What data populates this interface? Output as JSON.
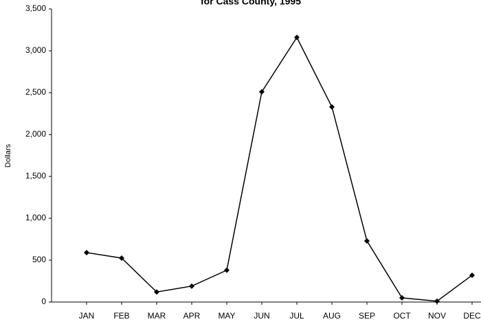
{
  "chart_data": {
    "type": "line",
    "title": "for Cass County, 1995",
    "y_label": "Dollars",
    "categories": [
      "JAN",
      "FEB",
      "MAR",
      "APR",
      "MAY",
      "JUN",
      "JUL",
      "AUG",
      "SEP",
      "OCT",
      "NOV",
      "DEC"
    ],
    "values": [
      590,
      525,
      120,
      190,
      380,
      2510,
      3160,
      2330,
      730,
      50,
      10,
      320
    ],
    "color": "#000000",
    "ylim": [
      0,
      3500
    ],
    "yticks": [
      0,
      500,
      {
        "value": 1000,
        "label": "1,000"
      },
      {
        "value": 1500,
        "label": "1,500"
      },
      {
        "value": 2000,
        "label": "2,000"
      },
      {
        "value": 2500,
        "label": "2,500"
      },
      {
        "value": 3000,
        "label": "3,000"
      },
      {
        "value": 3500,
        "label": "3,500"
      }
    ],
    "grid": false
  }
}
